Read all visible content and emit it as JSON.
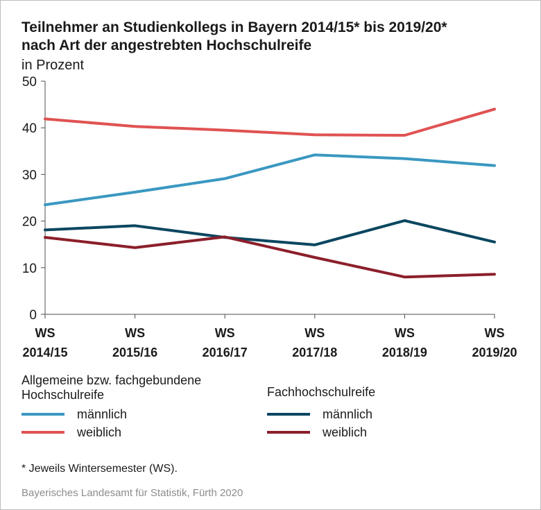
{
  "title_line1": "Teilnehmer an Studienkollegs in Bayern 2014/15* bis 2019/20*",
  "title_line2": "nach Art der angestrebten Hochschulreife",
  "subtitle": "in Prozent",
  "chart_data": {
    "type": "line",
    "categories": [
      [
        "WS",
        "2014/15"
      ],
      [
        "WS",
        "2015/16"
      ],
      [
        "WS",
        "2016/17"
      ],
      [
        "WS",
        "2017/18"
      ],
      [
        "WS",
        "2018/19"
      ],
      [
        "WS",
        "2019/20"
      ]
    ],
    "ylim": [
      0,
      50
    ],
    "yticks": [
      0,
      10,
      20,
      30,
      40,
      50
    ],
    "grid": false,
    "legend_position": "bottom",
    "series": [
      {
        "key": "ahr_m",
        "group": "Allgemeine bzw. fachgebundene Hochschulreife",
        "name": "männlich",
        "color": "#3a98c1",
        "values": [
          23.5,
          26.2,
          29.1,
          34.2,
          33.4,
          31.9
        ]
      },
      {
        "key": "ahr_w",
        "group": "Allgemeine bzw. fachgebundene Hochschulreife",
        "name": "weiblich",
        "color": "#e05252",
        "values": [
          41.9,
          40.3,
          39.5,
          38.5,
          38.4,
          44.0
        ]
      },
      {
        "key": "fhr_m",
        "group": "Fachhochschulreife",
        "name": "männlich",
        "color": "#0b4660",
        "values": [
          18.1,
          19.0,
          16.5,
          14.9,
          20.1,
          15.5
        ]
      },
      {
        "key": "fhr_w",
        "group": "Fachhochschulreife",
        "name": "weiblich",
        "color": "#8b1f2b",
        "values": [
          16.5,
          14.3,
          16.6,
          12.2,
          8.0,
          8.6
        ]
      }
    ]
  },
  "legend": {
    "group1_title": "Allgemeine bzw. fachgebundene Hochschulreife",
    "group1_m": "männlich",
    "group1_w": "weiblich",
    "group2_title": "Fachhochschulreife",
    "group2_m": "männlich",
    "group2_w": "weiblich"
  },
  "footnote": "* Jeweils Wintersemester (WS).",
  "source": "Bayerisches Landesamt für Statistik, Fürth 2020"
}
